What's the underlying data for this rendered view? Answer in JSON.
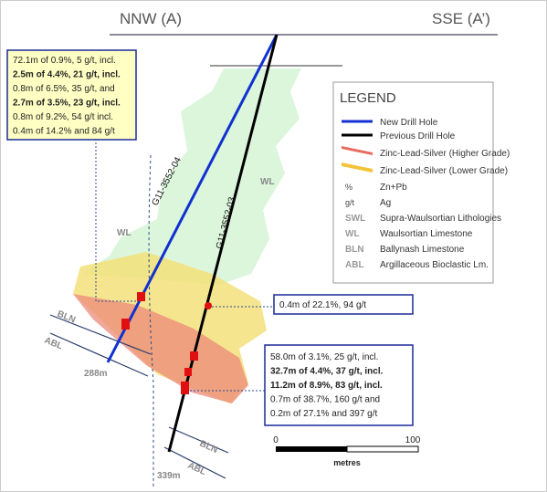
{
  "header": {
    "left": "NNW (A)",
    "right": "SSE (A’)"
  },
  "callouts": [
    {
      "lines": [
        {
          "text": "72.1m of 0.9%, 5 g/t, incl.",
          "bold": false
        },
        {
          "text": "2.5m of 4.4%, 21 g/t, incl.",
          "bold": true
        },
        {
          "text": "0.8m of 6.5%, 35 g/t, and",
          "bold": false
        },
        {
          "text": "2.7m of 3.5%, 23 g/t, incl.",
          "bold": true
        },
        {
          "text": "0.8m of 9.2%, 54 g/t incl.",
          "bold": false
        },
        {
          "text": "0.4m of 14.2% and 84 g/t",
          "bold": false
        }
      ]
    },
    {
      "lines": [
        {
          "text": "0.4m of 22.1%, 94 g/t",
          "bold": false
        }
      ]
    },
    {
      "lines": [
        {
          "text": "58.0m of 3.1%, 25 g/t, incl.",
          "bold": false
        },
        {
          "text": "32.7m of 4.4%, 37 g/t, incl.",
          "bold": true
        },
        {
          "text": "11.2m of 8.9%, 83 g/t, incl.",
          "bold": true
        },
        {
          "text": "0.7m of 38.7%, 160 g/t and",
          "bold": false
        },
        {
          "text": "0.2m of 27.1% and 397 g/t",
          "bold": false
        }
      ]
    }
  ],
  "holes": [
    "G11-3552-04",
    "G11-3552-03"
  ],
  "units": {
    "wl_upper": "WL",
    "wl_lower": "WL",
    "bln_left": "BLN",
    "abl_left": "ABL",
    "bln_right": "BLN",
    "abl_right": "ABL"
  },
  "depths": [
    "288m",
    "339m"
  ],
  "legend": {
    "title": "LEGEND",
    "items": [
      {
        "label": "New Drill Hole"
      },
      {
        "label": "Previous Drill Hole"
      },
      {
        "label": "Zinc-Lead-Silver (Higher Grade)"
      },
      {
        "label": "Zinc-Lead-Silver (Lower Grade)"
      },
      {
        "symbol": "%",
        "label": "Zn+Pb"
      },
      {
        "symbol": "g/t",
        "label": "Ag"
      },
      {
        "symbol": "SWL",
        "label": "Supra-Waulsortian Lithologies"
      },
      {
        "symbol": "WL",
        "label": "Waulsortian Limestone"
      },
      {
        "symbol": "BLN",
        "label": "Ballynash Limestone"
      },
      {
        "symbol": "ABL",
        "label": "Argillaceous Bioclastic Lm."
      }
    ]
  },
  "scale": {
    "start": "0",
    "end": "100",
    "unit": "metres"
  }
}
